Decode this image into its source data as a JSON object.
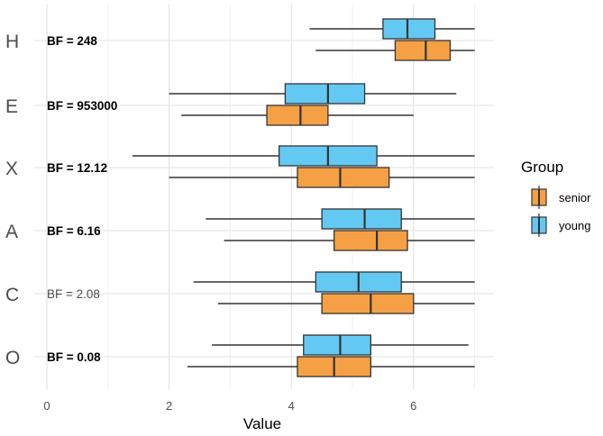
{
  "chart_data": {
    "type": "boxplot",
    "orientation": "horizontal",
    "xlabel": "Value",
    "ylabel": "",
    "xlim": [
      -0.15,
      7.3
    ],
    "xticks": [
      0,
      2,
      4,
      6
    ],
    "grid": true,
    "legend": {
      "title": "Group",
      "placement": "right",
      "entries": [
        {
          "name": "senior",
          "color": "#f5a044"
        },
        {
          "name": "young",
          "color": "#63c9f2"
        }
      ]
    },
    "categories": [
      "H",
      "E",
      "X",
      "A",
      "C",
      "O"
    ],
    "annotations": [
      {
        "category": "H",
        "text": "BF = 248",
        "bold": true
      },
      {
        "category": "E",
        "text": "BF = 953000",
        "bold": true
      },
      {
        "category": "X",
        "text": "BF = 12.12",
        "bold": true
      },
      {
        "category": "A",
        "text": "BF = 6.16",
        "bold": true
      },
      {
        "category": "C",
        "text": "BF = 2.08",
        "bold": false
      },
      {
        "category": "O",
        "text": "BF = 0.08",
        "bold": true
      }
    ],
    "series": [
      {
        "name": "young",
        "color": "#63c9f2",
        "boxes": [
          {
            "category": "H",
            "min": 4.3,
            "q1": 5.5,
            "median": 5.9,
            "q3": 6.35,
            "max": 7.0
          },
          {
            "category": "E",
            "min": 2.0,
            "q1": 3.9,
            "median": 4.6,
            "q3": 5.2,
            "max": 6.7
          },
          {
            "category": "X",
            "min": 1.4,
            "q1": 3.8,
            "median": 4.6,
            "q3": 5.4,
            "max": 7.0
          },
          {
            "category": "A",
            "min": 2.6,
            "q1": 4.5,
            "median": 5.2,
            "q3": 5.8,
            "max": 7.0
          },
          {
            "category": "C",
            "min": 2.4,
            "q1": 4.4,
            "median": 5.1,
            "q3": 5.8,
            "max": 7.0
          },
          {
            "category": "O",
            "min": 2.7,
            "q1": 4.2,
            "median": 4.8,
            "q3": 5.3,
            "max": 6.9
          }
        ]
      },
      {
        "name": "senior",
        "color": "#f5a044",
        "boxes": [
          {
            "category": "H",
            "min": 4.4,
            "q1": 5.7,
            "median": 6.2,
            "q3": 6.6,
            "max": 7.0
          },
          {
            "category": "E",
            "min": 2.2,
            "q1": 3.6,
            "median": 4.15,
            "q3": 4.6,
            "max": 6.0
          },
          {
            "category": "X",
            "min": 2.0,
            "q1": 4.1,
            "median": 4.8,
            "q3": 5.6,
            "max": 7.0
          },
          {
            "category": "A",
            "min": 2.9,
            "q1": 4.7,
            "median": 5.4,
            "q3": 5.9,
            "max": 7.0
          },
          {
            "category": "C",
            "min": 2.8,
            "q1": 4.5,
            "median": 5.3,
            "q3": 6.0,
            "max": 7.0
          },
          {
            "category": "O",
            "min": 2.3,
            "q1": 4.1,
            "median": 4.7,
            "q3": 5.3,
            "max": 7.0
          }
        ]
      }
    ]
  }
}
